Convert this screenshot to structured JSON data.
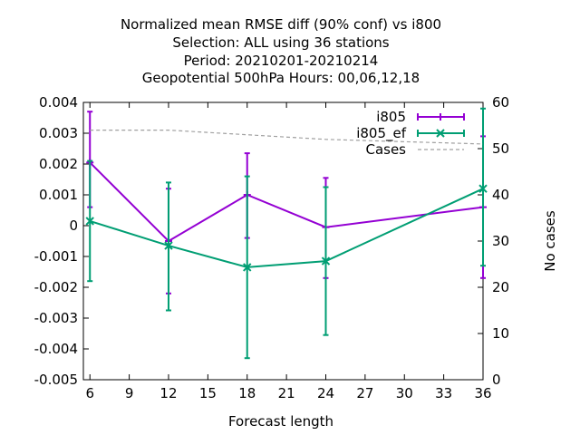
{
  "chart_data": {
    "type": "line",
    "title_lines": [
      "Normalized mean RMSE diff (90% conf) vs i800",
      "Selection: ALL using    36 stations",
      "Period: 20210201-20210214",
      "Geopotential 500hPa   Hours:  00,06,12,18"
    ],
    "xlabel": "Forecast length",
    "ylabel": "",
    "y2label": "No cases",
    "xlim": [
      5.5,
      36
    ],
    "ylim": [
      -0.005,
      0.004
    ],
    "y2lim": [
      0,
      60
    ],
    "x_ticks": [
      6,
      9,
      12,
      15,
      18,
      21,
      24,
      27,
      30,
      33,
      36
    ],
    "y_ticks": [
      0.004,
      0.003,
      0.002,
      0.001,
      0,
      -0.001,
      -0.002,
      -0.003,
      -0.004,
      -0.005
    ],
    "y_tick_labels": [
      "0.004",
      "0.003",
      "0.002",
      "0.001",
      "0",
      "-0.001",
      "-0.002",
      "-0.003",
      "-0.004",
      "-0.005"
    ],
    "y2_ticks": [
      0,
      10,
      20,
      30,
      40,
      50,
      60
    ],
    "legend_position": "top-right",
    "grid": false,
    "series": [
      {
        "name": "i805",
        "color": "#9400d3",
        "marker": "plus",
        "x": [
          6,
          12,
          18,
          24,
          36
        ],
        "y": [
          0.00205,
          -0.0005,
          0.001,
          -5e-05,
          0.0006
        ],
        "err_low": [
          0.0006,
          -0.0022,
          -0.0004,
          -0.0017,
          -0.0017
        ],
        "err_high": [
          0.0037,
          0.0012,
          0.00235,
          0.00155,
          0.0029
        ]
      },
      {
        "name": "i805_ef",
        "color": "#009e73",
        "marker": "cross",
        "x": [
          6,
          12,
          18,
          24,
          36
        ],
        "y": [
          0.00015,
          -0.00065,
          -0.00135,
          -0.00115,
          0.0012
        ],
        "err_low": [
          -0.0018,
          -0.00275,
          -0.0043,
          -0.00355,
          -0.0013
        ],
        "err_high": [
          0.0021,
          0.0014,
          0.0016,
          0.00125,
          0.0038
        ]
      },
      {
        "name": "Cases",
        "color": "#a0a0a0",
        "axis": "y2",
        "dashed": true,
        "x": [
          6,
          12,
          18,
          24,
          36
        ],
        "y": [
          54,
          54,
          53,
          52,
          51
        ]
      }
    ]
  }
}
